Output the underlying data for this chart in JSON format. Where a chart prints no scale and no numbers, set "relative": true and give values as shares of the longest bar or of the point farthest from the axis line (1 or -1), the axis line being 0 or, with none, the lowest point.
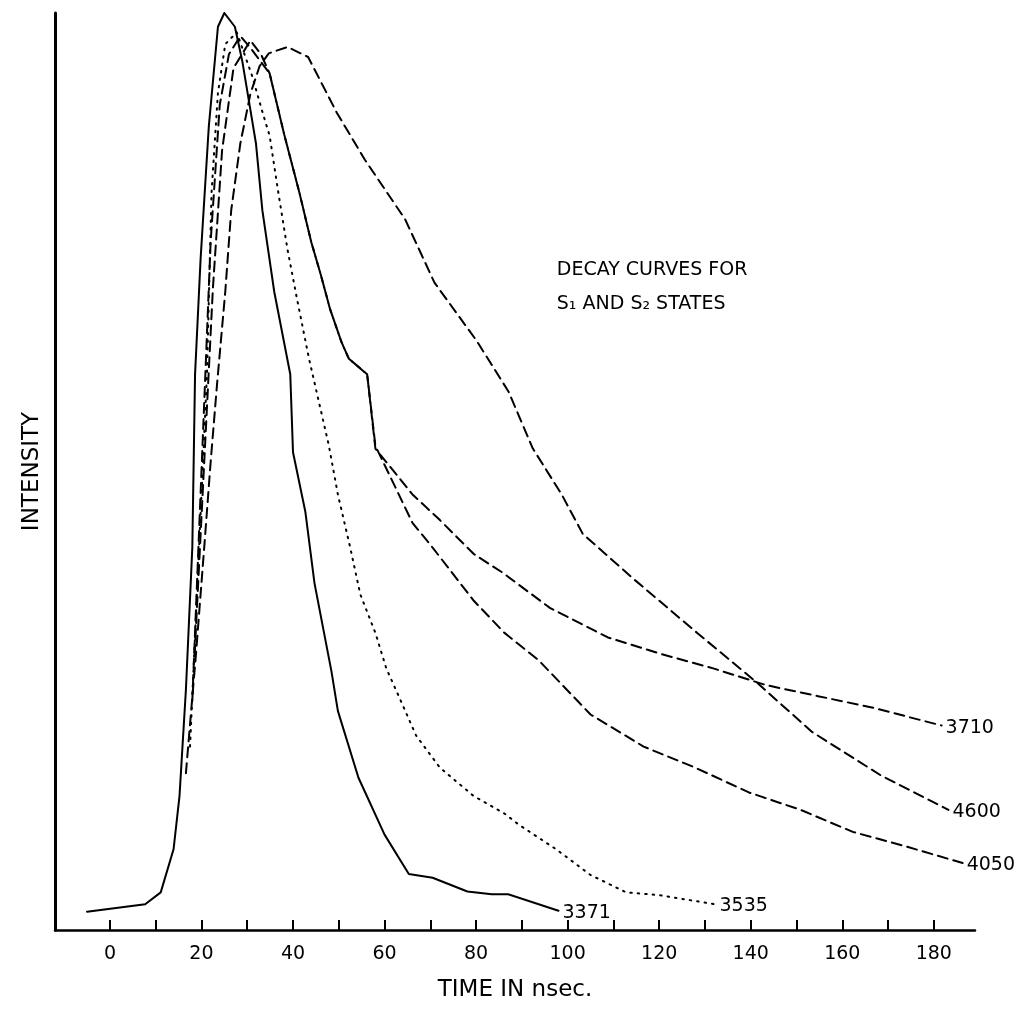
{
  "chart_data": {
    "type": "line",
    "title": "DECAY CURVES FOR\nS₁ AND S₂ STATES",
    "xlabel": "TIME IN nsec.",
    "ylabel": "INTENSITY",
    "relative": true,
    "xlim": [
      -12,
      189
    ],
    "xticks": [
      0,
      {
        "value": 10,
        "label": null
      },
      20,
      {
        "value": 30,
        "label": null
      },
      40,
      {
        "value": 50,
        "label": null
      },
      60,
      {
        "value": 70,
        "label": null
      },
      80,
      {
        "value": 90,
        "label": null
      },
      100,
      {
        "value": 110,
        "label": null
      },
      120,
      {
        "value": 130,
        "label": null
      },
      140,
      {
        "value": 150,
        "label": null
      },
      160,
      {
        "value": 170,
        "label": null
      },
      180
    ],
    "tick_labels": "x",
    "grid": false,
    "legend": false,
    "marker": "none",
    "series": [
      {
        "name": "3371",
        "color": "#000000",
        "line_style": "solid",
        "x": [
          -5,
          7.7,
          11.1,
          13.9,
          15.2,
          16.6,
          18,
          18.6,
          19.8,
          21.6,
          23.6,
          25,
          27.3,
          28.9,
          30.7,
          31.9,
          33.3,
          35.9,
          39.4,
          40,
          42.7,
          44.7,
          48.4,
          49.8,
          54.3,
          60,
          65.3,
          70.5,
          78.1,
          83.4,
          87,
          98
        ],
        "values": [
          0.02,
          0.028,
          0.041,
          0.088,
          0.146,
          0.262,
          0.417,
          0.606,
          0.731,
          0.876,
          0.985,
          1,
          0.985,
          0.948,
          0.894,
          0.858,
          0.785,
          0.696,
          0.606,
          0.521,
          0.456,
          0.378,
          0.282,
          0.239,
          0.166,
          0.104,
          0.061,
          0.057,
          0.042,
          0.039,
          0.039,
          0.021
        ]
      },
      {
        "name": "3535",
        "color": "#000000",
        "line_style": "dotted",
        "x": [
          17.5,
          19.5,
          21.2,
          22.2,
          23.6,
          25.2,
          27.7,
          31.1,
          33.2,
          34.9,
          36.8,
          38.8,
          41,
          43.5,
          47.8,
          49.8,
          52.5,
          54.7,
          58,
          60.4,
          63.1,
          66.9,
          72.1,
          79.5,
          86.2,
          89.3,
          97.5,
          105,
          112.8,
          120,
          132.3
        ],
        "values": [
          0.2,
          0.42,
          0.606,
          0.804,
          0.913,
          0.966,
          0.979,
          0.931,
          0.894,
          0.866,
          0.804,
          0.742,
          0.685,
          0.623,
          0.529,
          0.475,
          0.417,
          0.366,
          0.324,
          0.285,
          0.255,
          0.212,
          0.177,
          0.146,
          0.127,
          0.115,
          0.088,
          0.06,
          0.041,
          0.038,
          0.028
        ]
      },
      {
        "name": "3710",
        "color": "#000000",
        "line_style": "dashed",
        "x": [
          18,
          20,
          22,
          24,
          26,
          28.5,
          31,
          34.9,
          38,
          41.4,
          44,
          46.1,
          48.1,
          50.6,
          52.2,
          56.2,
          58,
          66.1,
          72.1,
          79.5,
          85.7,
          96.2,
          108.8,
          120.4,
          132,
          143.4,
          154.7,
          166.2,
          181.7
        ],
        "values": [
          0.25,
          0.5,
          0.75,
          0.9,
          0.955,
          0.975,
          0.96,
          0.934,
          0.869,
          0.804,
          0.75,
          0.714,
          0.677,
          0.641,
          0.623,
          0.606,
          0.525,
          0.475,
          0.447,
          0.41,
          0.39,
          0.351,
          0.319,
          0.301,
          0.285,
          0.267,
          0.255,
          0.243,
          0.223
        ]
      },
      {
        "name": "4050",
        "color": "#000000",
        "line_style": "dashed",
        "x": [
          18.5,
          20.5,
          22.5,
          24.5,
          27,
          30.7,
          33,
          34.9,
          38,
          41.4,
          44,
          46.1,
          48.1,
          50.6,
          52.2,
          56.2,
          58,
          66.1,
          70.5,
          79.5,
          86.2,
          93.7,
          105,
          116.6,
          127.9,
          139.6,
          150.9,
          162.3,
          173.3,
          186.3
        ],
        "values": [
          0.3,
          0.5,
          0.7,
          0.85,
          0.94,
          0.97,
          0.955,
          0.934,
          0.869,
          0.804,
          0.75,
          0.714,
          0.677,
          0.641,
          0.623,
          0.606,
          0.528,
          0.444,
          0.417,
          0.359,
          0.324,
          0.294,
          0.235,
          0.2,
          0.177,
          0.15,
          0.131,
          0.107,
          0.092,
          0.073
        ]
      },
      {
        "name": "4600",
        "color": "#000000",
        "line_style": "dashed",
        "x": [
          16.6,
          18.8,
          20.6,
          22,
          23.4,
          25.2,
          26.5,
          28.5,
          30.7,
          32.7,
          34.7,
          38.8,
          43.3,
          49.6,
          55.7,
          64.5,
          70.9,
          80.2,
          87.1,
          92.4,
          98.7,
          103.3,
          114.6,
          128.3,
          141.3,
          153.4,
          168.3,
          183.2
        ],
        "values": [
          0.171,
          0.301,
          0.417,
          0.51,
          0.595,
          0.696,
          0.785,
          0.858,
          0.912,
          0.942,
          0.956,
          0.963,
          0.952,
          0.891,
          0.84,
          0.775,
          0.706,
          0.642,
          0.587,
          0.525,
          0.475,
          0.432,
          0.382,
          0.324,
          0.27,
          0.216,
          0.169,
          0.131
        ]
      }
    ]
  }
}
